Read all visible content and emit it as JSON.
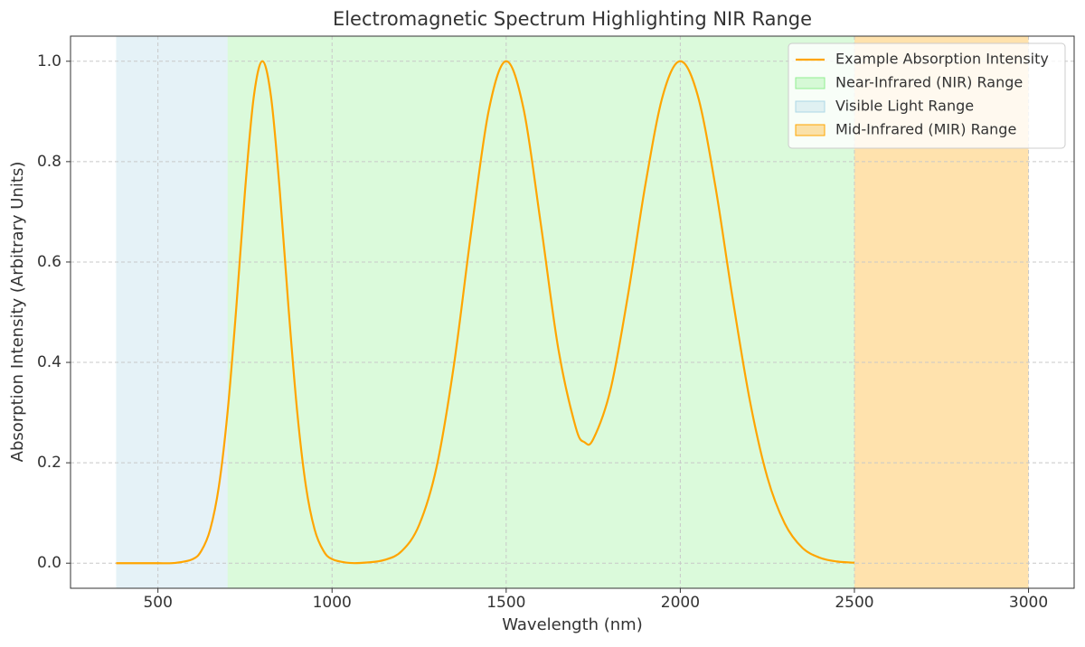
{
  "chart_data": {
    "type": "line",
    "title": "Electromagnetic Spectrum Highlighting NIR Range",
    "x_label": "Wavelength (nm)",
    "y_label": "Absorption Intensity (Arbitrary Units)",
    "x": [
      380,
      450,
      500,
      550,
      600,
      625,
      650,
      675,
      700,
      725,
      750,
      775,
      800,
      825,
      850,
      875,
      900,
      925,
      950,
      975,
      1000,
      1050,
      1100,
      1150,
      1200,
      1250,
      1300,
      1350,
      1400,
      1450,
      1500,
      1550,
      1600,
      1650,
      1700,
      1725,
      1750,
      1800,
      1850,
      1900,
      1950,
      2000,
      2050,
      2100,
      2150,
      2200,
      2250,
      2300,
      2350,
      2400,
      2450,
      2500
    ],
    "series": [
      {
        "name": "Example Absorption Intensity",
        "color": "#ffa500",
        "values": [
          0,
          0,
          0,
          0.0005,
          0.008,
          0.025,
          0.067,
          0.153,
          0.301,
          0.509,
          0.741,
          0.928,
          1,
          0.928,
          0.741,
          0.509,
          0.301,
          0.153,
          0.067,
          0.025,
          0.008,
          0.0005,
          0.0013,
          0.0063,
          0.024,
          0.076,
          0.191,
          0.395,
          0.662,
          0.902,
          1,
          0.905,
          0.673,
          0.426,
          0.27,
          0.241,
          0.247,
          0.347,
          0.535,
          0.755,
          0.932,
          1,
          0.932,
          0.754,
          0.529,
          0.323,
          0.171,
          0.079,
          0.031,
          0.011,
          0.0033,
          0.0009
        ]
      }
    ],
    "spans": [
      {
        "name": "Near-Infrared (NIR) Range",
        "color": "#90ee90",
        "range": [
          700,
          2500
        ]
      },
      {
        "name": "Visible Light Range",
        "color": "#add8e6",
        "range": [
          380,
          700
        ]
      },
      {
        "name": "Mid-Infrared (MIR) Range",
        "color": "#ffa500",
        "range": [
          2500,
          3000
        ]
      }
    ],
    "xlim": [
      249,
      3131
    ],
    "ylim": [
      -0.05,
      1.05
    ],
    "xticks": [
      500,
      1000,
      1500,
      2000,
      2500,
      3000
    ],
    "yticks": [
      {
        "value": 0,
        "label": "0.0"
      },
      {
        "value": 0.2,
        "label": "0.2"
      },
      {
        "value": 0.4,
        "label": "0.4"
      },
      {
        "value": 0.6,
        "label": "0.6"
      },
      {
        "value": 0.8,
        "label": "0.8"
      },
      {
        "value": 1,
        "label": "1.0"
      }
    ],
    "grid": true,
    "legend": "upper right"
  }
}
